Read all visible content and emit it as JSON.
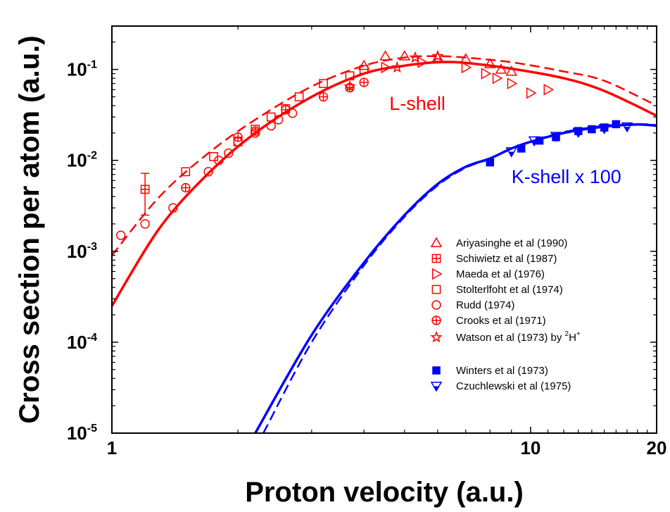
{
  "chart_data": {
    "type": "scatter",
    "xlabel": "Proton velocity (a.u.)",
    "ylabel": "Cross section per atom (a.u.)",
    "x_scale": "log",
    "y_scale": "log",
    "xlim": [
      1,
      20
    ],
    "ylim": [
      1e-05,
      0.3
    ],
    "x_ticks": [
      {
        "value": 1,
        "label": "1"
      },
      {
        "value": 10,
        "label": "10"
      },
      {
        "value": 20,
        "label": "20"
      }
    ],
    "y_ticks": [
      {
        "value": 1e-05,
        "base": "10",
        "exp": "-5"
      },
      {
        "value": 0.0001,
        "base": "10",
        "exp": "-4"
      },
      {
        "value": 0.001,
        "base": "10",
        "exp": "-3"
      },
      {
        "value": 0.01,
        "base": "10",
        "exp": "-2"
      },
      {
        "value": 0.1,
        "base": "10",
        "exp": "-1"
      }
    ],
    "annotations": [
      {
        "text": "L-shell",
        "color": "#ff0000",
        "x": 4.6,
        "y": 0.036
      },
      {
        "text": "K-shell x 100",
        "color": "#0000ff",
        "x": 9.0,
        "y": 0.0056
      }
    ],
    "curves": [
      {
        "group": "L-shell",
        "style": "solid",
        "color": "#ff0000",
        "points": [
          [
            1.0,
            0.00025
          ],
          [
            1.3,
            0.0018
          ],
          [
            1.7,
            0.0072
          ],
          [
            2.2,
            0.02
          ],
          [
            3.0,
            0.05
          ],
          [
            4.0,
            0.09
          ],
          [
            5.0,
            0.11
          ],
          [
            6.0,
            0.12
          ],
          [
            7.0,
            0.118
          ],
          [
            9.0,
            0.102
          ],
          [
            12.0,
            0.08
          ],
          [
            15.0,
            0.058
          ],
          [
            20.0,
            0.031
          ]
        ]
      },
      {
        "group": "L-shell",
        "style": "dashed",
        "color": "#ff0000",
        "points": [
          [
            1.0,
            0.0009
          ],
          [
            1.3,
            0.004
          ],
          [
            1.7,
            0.012
          ],
          [
            2.2,
            0.028
          ],
          [
            3.0,
            0.065
          ],
          [
            4.0,
            0.11
          ],
          [
            5.0,
            0.135
          ],
          [
            6.0,
            0.14
          ],
          [
            7.0,
            0.135
          ],
          [
            9.0,
            0.12
          ],
          [
            12.0,
            0.095
          ],
          [
            15.0,
            0.075
          ],
          [
            20.0,
            0.04
          ]
        ]
      },
      {
        "group": "K-shell x 100",
        "style": "solid",
        "color": "#0000ff",
        "points": [
          [
            2.2,
            1e-05
          ],
          [
            3.0,
            0.00012
          ],
          [
            4.0,
            0.00075
          ],
          [
            5.0,
            0.0025
          ],
          [
            6.0,
            0.0055
          ],
          [
            7.0,
            0.0085
          ],
          [
            8.0,
            0.0105
          ],
          [
            9.0,
            0.0135
          ],
          [
            10.0,
            0.016
          ],
          [
            12.0,
            0.02
          ],
          [
            15.0,
            0.0235
          ],
          [
            18.0,
            0.0248
          ],
          [
            20.0,
            0.024
          ]
        ]
      },
      {
        "group": "K-shell x 100",
        "style": "dashed",
        "color": "#0000ff",
        "points": [
          [
            2.3,
            1e-05
          ],
          [
            3.0,
            0.0001
          ],
          [
            4.0,
            0.0007
          ],
          [
            5.0,
            0.0024
          ],
          [
            6.0,
            0.0053
          ],
          [
            7.0,
            0.0083
          ],
          [
            8.0,
            0.0104
          ],
          [
            9.0,
            0.0135
          ],
          [
            10.0,
            0.016
          ],
          [
            12.0,
            0.0205
          ],
          [
            15.0,
            0.024
          ],
          [
            18.0,
            0.025
          ],
          [
            20.0,
            0.0245
          ]
        ]
      }
    ],
    "series": [
      {
        "name": "Ariyasinghe et al (1990)",
        "marker": "triangle-up",
        "color": "#ff0000",
        "points": [
          [
            4.0,
            0.11
          ],
          [
            4.5,
            0.14
          ],
          [
            5.0,
            0.14
          ],
          [
            6.0,
            0.135
          ],
          [
            7.0,
            0.13
          ],
          [
            8.0,
            0.115
          ],
          [
            8.5,
            0.1
          ],
          [
            9.0,
            0.095
          ]
        ]
      },
      {
        "name": "Schiwietz et al (1987)",
        "marker": "square-cross",
        "color": "#ff0000",
        "points": [
          [
            1.2,
            0.0048
          ]
        ],
        "errorbar": [
          [
            0.0025,
            0.0072
          ]
        ]
      },
      {
        "name": "Maeda et al (1976)",
        "marker": "triangle-right",
        "color": "#ff0000",
        "points": [
          [
            4.5,
            0.105
          ],
          [
            5.5,
            0.12
          ],
          [
            7.0,
            0.105
          ],
          [
            7.8,
            0.09
          ],
          [
            8.3,
            0.08
          ],
          [
            9.0,
            0.07
          ],
          [
            10.0,
            0.055
          ],
          [
            11.0,
            0.06
          ]
        ]
      },
      {
        "name": "Stolterlfoht  et al (1974)",
        "marker": "square",
        "color": "#ff0000",
        "points": [
          [
            1.5,
            0.0075
          ],
          [
            1.75,
            0.011
          ],
          [
            2.0,
            0.016
          ],
          [
            2.2,
            0.022
          ],
          [
            2.4,
            0.03
          ],
          [
            2.6,
            0.037
          ],
          [
            2.8,
            0.05
          ],
          [
            3.2,
            0.07
          ],
          [
            3.7,
            0.085
          ],
          [
            4.0,
            0.1
          ]
        ]
      },
      {
        "name": "Rudd (1974)",
        "marker": "circle",
        "color": "#ff0000",
        "points": [
          [
            1.05,
            0.0015
          ],
          [
            1.2,
            0.002
          ],
          [
            1.4,
            0.003
          ],
          [
            1.7,
            0.0075
          ],
          [
            1.8,
            0.01
          ],
          [
            1.9,
            0.012
          ],
          [
            2.0,
            0.016
          ],
          [
            2.2,
            0.02
          ],
          [
            2.4,
            0.024
          ],
          [
            2.5,
            0.028
          ],
          [
            2.7,
            0.033
          ]
        ]
      },
      {
        "name": "Crooks et al (1971)",
        "marker": "circle-cross",
        "color": "#ff0000",
        "points": [
          [
            1.5,
            0.005
          ],
          [
            2.0,
            0.018
          ],
          [
            2.2,
            0.021
          ],
          [
            2.6,
            0.036
          ],
          [
            3.2,
            0.05
          ],
          [
            3.7,
            0.063
          ],
          [
            4.0,
            0.072
          ]
        ]
      },
      {
        "name": "Watson et al (1973) by ",
        "name_sup1": "2",
        "name_mid": "H",
        "name_sup2": "+",
        "marker": "star",
        "color": "#ff0000",
        "points": [
          [
            3.7,
            0.065
          ],
          [
            4.8,
            0.105
          ],
          [
            5.3,
            0.135
          ],
          [
            6.0,
            0.14
          ]
        ]
      },
      {
        "name": "Winters et al (1973)",
        "marker": "filled-square",
        "color": "#0000ff",
        "points": [
          [
            8.0,
            0.0095
          ],
          [
            9.5,
            0.0135
          ],
          [
            10.5,
            0.0165
          ],
          [
            11.5,
            0.018
          ],
          [
            13.0,
            0.021
          ],
          [
            14.0,
            0.022
          ],
          [
            15.0,
            0.023
          ],
          [
            16.0,
            0.025
          ]
        ]
      },
      {
        "name": "Czuchlewski et al (1975)",
        "marker": "triangle-down-half",
        "color": "#0000ff",
        "points": [
          [
            9.0,
            0.0125
          ],
          [
            10.2,
            0.0165
          ],
          [
            11.5,
            0.0185
          ],
          [
            13.0,
            0.0205
          ],
          [
            15.0,
            0.0225
          ],
          [
            17.0,
            0.0235
          ]
        ]
      }
    ],
    "legend_position": "lower-right"
  }
}
